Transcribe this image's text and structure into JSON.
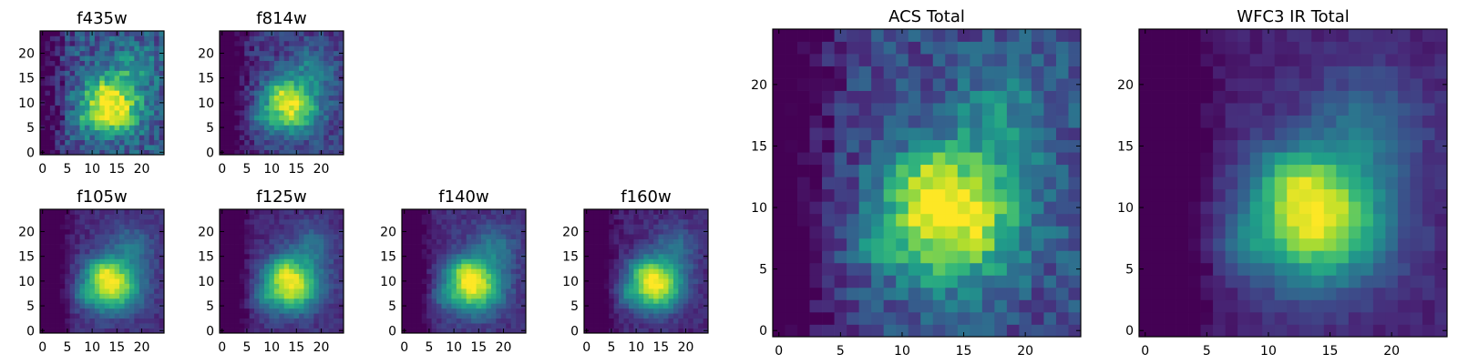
{
  "chart_data": [
    {
      "type": "heatmap",
      "title": "f435w",
      "xticks": [
        0,
        5,
        10,
        15,
        20
      ],
      "yticks": [
        0,
        5,
        10,
        15,
        20
      ],
      "xlim": [
        0,
        25
      ],
      "ylim": [
        0,
        25
      ],
      "colormap": "viridis",
      "noise": 0.32,
      "peak": 0.78,
      "base": 0.55
    },
    {
      "type": "heatmap",
      "title": "f814w",
      "xticks": [
        0,
        5,
        10,
        15,
        20
      ],
      "yticks": [
        0,
        5,
        10,
        15,
        20
      ],
      "xlim": [
        0,
        25
      ],
      "ylim": [
        0,
        25
      ],
      "colormap": "viridis",
      "noise": 0.22,
      "peak": 0.75,
      "base": 0.35
    },
    {
      "type": "heatmap",
      "title": "f105w",
      "xticks": [
        0,
        5,
        10,
        15,
        20
      ],
      "yticks": [
        0,
        5,
        10,
        15,
        20
      ],
      "xlim": [
        0,
        25
      ],
      "ylim": [
        0,
        25
      ],
      "colormap": "viridis",
      "noise": 0.12,
      "peak": 0.85,
      "base": 0.25
    },
    {
      "type": "heatmap",
      "title": "f125w",
      "xticks": [
        0,
        5,
        10,
        15,
        20
      ],
      "yticks": [
        0,
        5,
        10,
        15,
        20
      ],
      "xlim": [
        0,
        25
      ],
      "ylim": [
        0,
        25
      ],
      "colormap": "viridis",
      "noise": 0.12,
      "peak": 0.85,
      "base": 0.25
    },
    {
      "type": "heatmap",
      "title": "f140w",
      "xticks": [
        0,
        5,
        10,
        15,
        20
      ],
      "yticks": [
        0,
        5,
        10,
        15,
        20
      ],
      "xlim": [
        0,
        25
      ],
      "ylim": [
        0,
        25
      ],
      "colormap": "viridis",
      "noise": 0.12,
      "peak": 0.85,
      "base": 0.28
    },
    {
      "type": "heatmap",
      "title": "f160w",
      "xticks": [
        0,
        5,
        10,
        15,
        20
      ],
      "yticks": [
        0,
        5,
        10,
        15,
        20
      ],
      "xlim": [
        0,
        25
      ],
      "ylim": [
        0,
        25
      ],
      "colormap": "viridis",
      "noise": 0.12,
      "peak": 0.88,
      "base": 0.2
    },
    {
      "type": "heatmap",
      "title": "ACS Total",
      "xticks": [
        0,
        5,
        10,
        15,
        20
      ],
      "yticks": [
        0,
        5,
        10,
        15,
        20
      ],
      "xlim": [
        0,
        25
      ],
      "ylim": [
        0,
        25
      ],
      "colormap": "viridis",
      "noise": 0.26,
      "peak": 0.8,
      "base": 0.45
    },
    {
      "type": "heatmap",
      "title": "WFC3 IR Total",
      "xticks": [
        0,
        5,
        10,
        15,
        20
      ],
      "yticks": [
        0,
        5,
        10,
        15,
        20
      ],
      "xlim": [
        0,
        25
      ],
      "ylim": [
        0,
        25
      ],
      "colormap": "viridis",
      "noise": 0.1,
      "peak": 0.88,
      "base": 0.2
    }
  ]
}
